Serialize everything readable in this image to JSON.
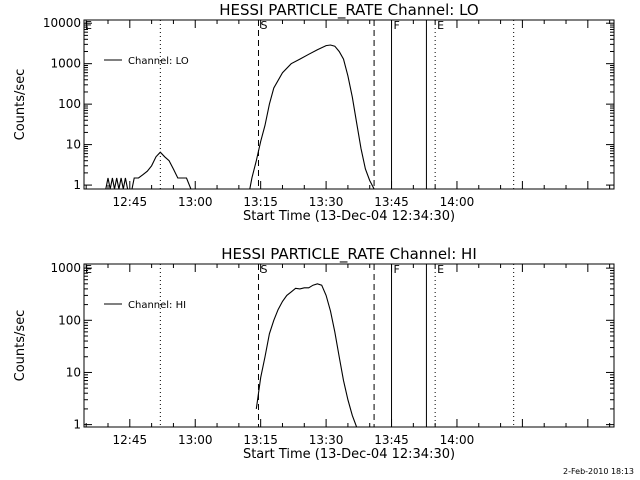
{
  "footer_timestamp": "2-Feb-2010 18:13",
  "chart_data": [
    {
      "type": "line",
      "title": "HESSI PARTICLE_RATE Channel: LO",
      "xlabel": "Start Time (13-Dec-04 12:34:30)",
      "ylabel": "Counts/sec",
      "yscale": "log",
      "x_ticks": [
        "12:45",
        "13:00",
        "13:15",
        "13:30",
        "13:45",
        "14:00"
      ],
      "x_tick_minutes": [
        765,
        780,
        795,
        810,
        825,
        840
      ],
      "xlim_minutes": [
        754.5,
        876
      ],
      "y_ticks": [
        "1",
        "10",
        "100",
        "1000",
        "10000"
      ],
      "ylim": [
        0.8,
        12000
      ],
      "legend": {
        "label": "Channel: LO",
        "position": "top-left"
      },
      "series": [
        {
          "x": [
            759.5,
            760,
            760.5,
            761,
            761.5,
            762,
            762.5,
            763,
            763.5,
            764,
            764.5,
            765.5,
            766,
            767,
            768,
            769,
            770,
            771,
            772,
            773,
            774,
            775,
            776,
            777,
            778,
            779
          ],
          "y": [
            0.8,
            1.5,
            0.8,
            1.5,
            0.8,
            1.5,
            0.8,
            1.5,
            0.8,
            1.5,
            0.8,
            0.8,
            1.5,
            1.5,
            1.8,
            2.2,
            3,
            5,
            6.5,
            5,
            4,
            2.5,
            1.5,
            1.5,
            1.5,
            0.8
          ]
        },
        {
          "x": [
            792.5,
            793,
            794,
            795,
            796,
            797,
            798,
            800,
            802,
            804,
            806,
            808,
            810,
            811,
            812,
            813,
            814,
            815,
            816,
            817,
            818,
            819,
            820,
            821,
            822
          ],
          "y": [
            0.8,
            1.5,
            4,
            12,
            30,
            100,
            250,
            600,
            1000,
            1300,
            1700,
            2200,
            2800,
            2900,
            2700,
            2000,
            1300,
            500,
            150,
            35,
            8,
            2.5,
            1.3,
            0.8,
            0.8
          ]
        }
      ],
      "vlines": [
        {
          "x_minutes": 772,
          "style": "dotted"
        },
        {
          "x_minutes": 794.5,
          "style": "dashed",
          "label": "S"
        },
        {
          "x_minutes": 821,
          "style": "dashed"
        },
        {
          "x_minutes": 825,
          "style": "solid",
          "label": "F"
        },
        {
          "x_minutes": 833,
          "style": "solid"
        },
        {
          "x_minutes": 835,
          "style": "dotted",
          "label": "E"
        },
        {
          "x_minutes": 853,
          "style": "dotted"
        }
      ],
      "corner_marker": "E"
    },
    {
      "type": "line",
      "title": "HESSI PARTICLE_RATE Channel: HI",
      "xlabel": "Start Time (13-Dec-04 12:34:30)",
      "ylabel": "Counts/sec",
      "yscale": "log",
      "x_ticks": [
        "12:45",
        "13:00",
        "13:15",
        "13:30",
        "13:45",
        "14:00"
      ],
      "x_tick_minutes": [
        765,
        780,
        795,
        810,
        825,
        840
      ],
      "xlim_minutes": [
        754.5,
        876
      ],
      "y_ticks": [
        "1",
        "10",
        "100",
        "1000"
      ],
      "ylim": [
        0.9,
        1200
      ],
      "legend": {
        "label": "Channel: HI",
        "position": "top-left"
      },
      "series": [
        {
          "x": [
            794,
            794.5,
            795,
            796,
            797,
            798,
            799,
            800,
            801,
            802,
            803,
            804,
            805,
            806,
            807,
            808,
            809,
            810,
            811,
            812,
            813,
            814,
            815,
            816,
            817,
            818
          ],
          "y": [
            2,
            4,
            8,
            20,
            55,
            100,
            160,
            230,
            300,
            350,
            410,
            400,
            420,
            420,
            470,
            500,
            470,
            300,
            150,
            60,
            20,
            7,
            3,
            1.5,
            0.9,
            0.9
          ]
        }
      ],
      "vlines": [
        {
          "x_minutes": 772,
          "style": "dotted"
        },
        {
          "x_minutes": 794.5,
          "style": "dashed",
          "label": "S"
        },
        {
          "x_minutes": 821,
          "style": "dashed"
        },
        {
          "x_minutes": 825,
          "style": "solid",
          "label": "F"
        },
        {
          "x_minutes": 833,
          "style": "solid"
        },
        {
          "x_minutes": 835,
          "style": "dotted",
          "label": "E"
        },
        {
          "x_minutes": 853,
          "style": "dotted"
        }
      ],
      "corner_marker": "E"
    }
  ]
}
